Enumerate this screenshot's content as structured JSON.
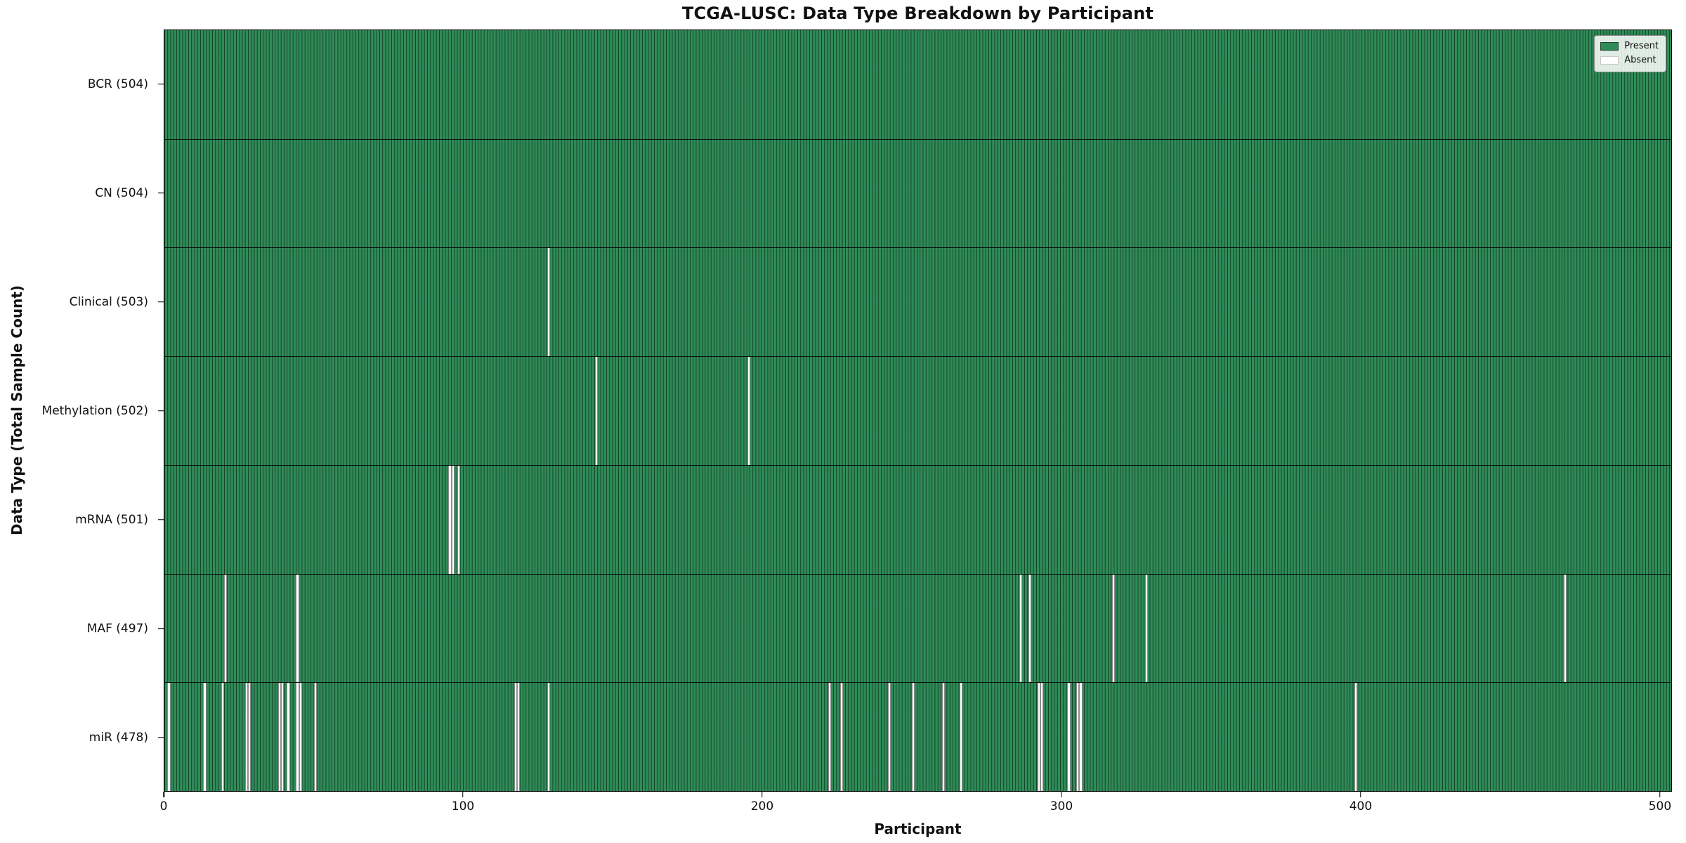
{
  "figure": {
    "title": "TCGA-LUSC: Data Type Breakdown by Participant",
    "xlabel": "Participant",
    "ylabel": "Data Type (Total Sample Count)"
  },
  "legend": {
    "items": [
      {
        "label": "Present",
        "color": "#2e8b57"
      },
      {
        "label": "Absent",
        "color": "#ffffff"
      }
    ],
    "position": "upper right"
  },
  "colors": {
    "present": "#2e8b57",
    "absent": "#ffffff",
    "bar_edge": "#143823",
    "spine": "#000000",
    "background": "#ffffff"
  },
  "chart_data": {
    "type": "heatmap",
    "title": "TCGA-LUSC: Data Type Breakdown by Participant",
    "xlabel": "Participant",
    "ylabel": "Data Type (Total Sample Count)",
    "x_ticks": [
      0,
      100,
      200,
      300,
      400,
      500
    ],
    "xlim": [
      0,
      504
    ],
    "participants_total": 504,
    "grid": false,
    "legend_entries": [
      "Present",
      "Absent"
    ],
    "legend_position": "upper right",
    "rows": [
      {
        "label": "BCR (504)",
        "data_type": "BCR",
        "total_count": 504,
        "absent_participants": []
      },
      {
        "label": "CN (504)",
        "data_type": "CN",
        "total_count": 504,
        "absent_participants": []
      },
      {
        "label": "Clinical (503)",
        "data_type": "Clinical",
        "total_count": 503,
        "absent_participants": [
          128
        ]
      },
      {
        "label": "Methylation (502)",
        "data_type": "Methylation",
        "total_count": 502,
        "absent_participants": [
          144,
          195
        ]
      },
      {
        "label": "mRNA (501)",
        "data_type": "mRNA",
        "total_count": 501,
        "absent_participants": [
          95,
          96,
          98
        ]
      },
      {
        "label": "MAF (497)",
        "data_type": "MAF",
        "total_count": 497,
        "absent_participants": [
          20,
          44,
          286,
          289,
          317,
          328,
          468
        ]
      },
      {
        "label": "miR (478)",
        "data_type": "miR",
        "total_count": 478,
        "absent_participants": [
          1,
          13,
          19,
          27,
          28,
          38,
          39,
          41,
          44,
          45,
          50,
          117,
          118,
          128,
          222,
          226,
          242,
          250,
          260,
          266,
          292,
          293,
          302,
          305,
          306,
          398
        ]
      }
    ]
  }
}
